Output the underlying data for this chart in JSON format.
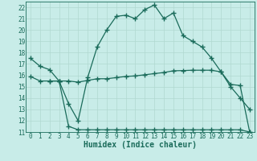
{
  "title": "",
  "xlabel": "Humidex (Indice chaleur)",
  "background_color": "#c8ece8",
  "grid_color": "#b0d8d0",
  "line_color": "#1a6b5a",
  "xlim": [
    -0.5,
    23.5
  ],
  "ylim": [
    11,
    22.5
  ],
  "yticks": [
    11,
    12,
    13,
    14,
    15,
    16,
    17,
    18,
    19,
    20,
    21,
    22
  ],
  "xticks": [
    0,
    1,
    2,
    3,
    4,
    5,
    6,
    7,
    8,
    9,
    10,
    11,
    12,
    13,
    14,
    15,
    16,
    17,
    18,
    19,
    20,
    21,
    22,
    23
  ],
  "line1_x": [
    0,
    1,
    2,
    3,
    4,
    5,
    6,
    7,
    8,
    9,
    10,
    11,
    12,
    13,
    14,
    15,
    16,
    17,
    18,
    19,
    20,
    21,
    22,
    23
  ],
  "line1_y": [
    17.5,
    16.8,
    16.5,
    15.5,
    13.5,
    12.0,
    15.8,
    18.5,
    20.0,
    21.2,
    21.3,
    21.0,
    21.8,
    22.2,
    21.0,
    21.5,
    19.5,
    19.0,
    18.5,
    17.5,
    16.3,
    15.0,
    14.0,
    13.0
  ],
  "line2_x": [
    2,
    3,
    4,
    5,
    6,
    7,
    8,
    9,
    10,
    11,
    12,
    13,
    14,
    15,
    16,
    17,
    18,
    19,
    20,
    21,
    22,
    23
  ],
  "line2_y": [
    15.5,
    15.5,
    15.5,
    15.4,
    15.55,
    15.7,
    15.7,
    15.8,
    15.9,
    15.95,
    16.05,
    16.15,
    16.25,
    16.4,
    16.42,
    16.45,
    16.45,
    16.45,
    16.3,
    15.2,
    15.1,
    11.0
  ],
  "line3_x": [
    0,
    1,
    2,
    3,
    4,
    5,
    6,
    7,
    8,
    9,
    10,
    11,
    12,
    13,
    14,
    15,
    16,
    17,
    18,
    19,
    20,
    21,
    22,
    23
  ],
  "line3_y": [
    15.9,
    15.5,
    15.5,
    15.5,
    11.5,
    11.2,
    11.2,
    11.2,
    11.2,
    11.2,
    11.2,
    11.2,
    11.2,
    11.2,
    11.2,
    11.2,
    11.2,
    11.2,
    11.2,
    11.2,
    11.2,
    11.2,
    11.2,
    11.0
  ],
  "marker_size": 2.5,
  "line_width": 0.9,
  "tick_fontsize": 5.5,
  "label_fontsize": 7.0
}
